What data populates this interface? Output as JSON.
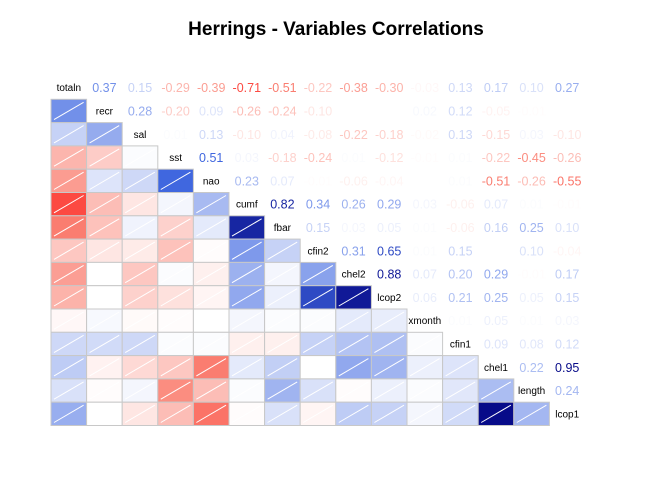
{
  "chart_data": {
    "type": "heatmap",
    "title": "Herrings - Variables Correlations",
    "variables": [
      "totaln",
      "recr",
      "sal",
      "sst",
      "nao",
      "cumf",
      "fbar",
      "cfin2",
      "chel2",
      "lcop2",
      "xmonth",
      "cfin1",
      "chel1",
      "length",
      "lcop1"
    ],
    "layout": "lower triangle shaded cells, upper triangle numeric coefficients",
    "upper_labels": [
      [
        null,
        "0.37",
        "0.15",
        "-0.29",
        "-0.39",
        "-0.71",
        "-0.51",
        "-0.22",
        "-0.38",
        "-0.30",
        "-0.03",
        "0.13",
        "0.17",
        "0.10",
        "0.27"
      ],
      [
        null,
        null,
        "0.28",
        "-0.20",
        "0.09",
        "-0.26",
        "-0.24",
        "-0.10",
        "0.00",
        "-0.00",
        "0.02",
        "0.12",
        "-0.05",
        "-0.01",
        "0.00"
      ],
      [
        null,
        null,
        null,
        "0.01",
        "0.13",
        "-0.10",
        "0.04",
        "-0.08",
        "-0.22",
        "-0.18",
        "-0.02",
        "0.13",
        "-0.15",
        "0.03",
        "-0.10"
      ],
      [
        null,
        null,
        null,
        null,
        "0.51",
        "0.03",
        "-0.18",
        "-0.24",
        "0.01",
        "-0.12",
        "-0.01",
        "0.01",
        "-0.22",
        "-0.45",
        "-0.26"
      ],
      [
        null,
        null,
        null,
        null,
        null,
        "0.23",
        "0.07",
        "-0.01",
        "-0.06",
        "-0.04",
        "-0.00",
        "0.01",
        "-0.51",
        "-0.26",
        "-0.55"
      ],
      [
        null,
        null,
        null,
        null,
        null,
        null,
        "0.82",
        "0.34",
        "0.26",
        "0.29",
        "0.03",
        "-0.06",
        "0.07",
        "0.01",
        "-0.01"
      ],
      [
        null,
        null,
        null,
        null,
        null,
        null,
        null,
        "0.15",
        "0.03",
        "0.05",
        "0.01",
        "-0.06",
        "0.16",
        "0.25",
        "0.10"
      ],
      [
        null,
        null,
        null,
        null,
        null,
        null,
        null,
        null,
        "0.31",
        "0.65",
        "0.01",
        "0.15",
        "-0.00",
        "0.10",
        "-0.04"
      ],
      [
        null,
        null,
        null,
        null,
        null,
        null,
        null,
        null,
        null,
        "0.88",
        "0.07",
        "0.20",
        "0.29",
        "-0.01",
        "0.17"
      ],
      [
        null,
        null,
        null,
        null,
        null,
        null,
        null,
        null,
        null,
        null,
        "0.06",
        "0.21",
        "0.25",
        "0.05",
        "0.15"
      ],
      [
        null,
        null,
        null,
        null,
        null,
        null,
        null,
        null,
        null,
        null,
        null,
        "0.01",
        "0.05",
        "0.01",
        "0.03"
      ],
      [
        null,
        null,
        null,
        null,
        null,
        null,
        null,
        null,
        null,
        null,
        null,
        null,
        "0.09",
        "0.08",
        "0.12"
      ],
      [
        null,
        null,
        null,
        null,
        null,
        null,
        null,
        null,
        null,
        null,
        null,
        null,
        null,
        "0.22",
        "0.95"
      ],
      [
        null,
        null,
        null,
        null,
        null,
        null,
        null,
        null,
        null,
        null,
        null,
        null,
        null,
        null,
        "0.24"
      ]
    ],
    "colors": {
      "positive_max": "#00007f",
      "negative_max": "#ff0000",
      "neutral": "#ffffff",
      "cell_border": "#c8c8c8",
      "diag_line": "#ffffff"
    },
    "legend": "none",
    "grid": true
  }
}
